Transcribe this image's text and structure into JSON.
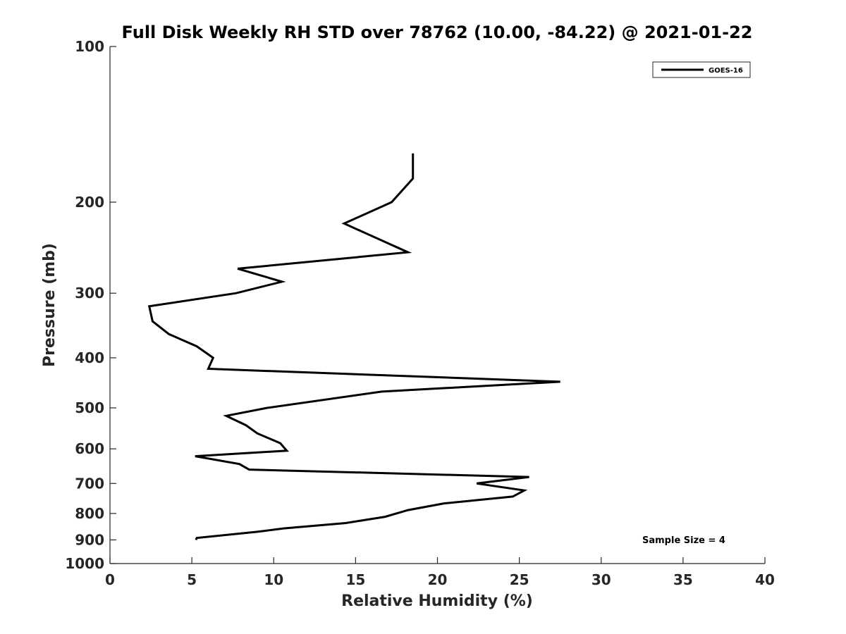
{
  "chart_data": {
    "type": "line",
    "title": "Full Disk Weekly RH STD over 78762 (10.00, -84.22) @ 2021-01-22",
    "xlabel": "Relative Humidity (%)",
    "ylabel": "Pressure (mb)",
    "xlim": [
      0,
      40
    ],
    "ylim": [
      100,
      1000
    ],
    "y_scale": "log",
    "y_reversed": true,
    "x_ticks": [
      "0",
      "5",
      "10",
      "15",
      "20",
      "25",
      "30",
      "35",
      "40"
    ],
    "y_ticks": [
      "100",
      "200",
      "300",
      "400",
      "500",
      "600",
      "700",
      "800",
      "900",
      "1000"
    ],
    "grid": false,
    "legend": {
      "position": "top-right",
      "entries": [
        "GOES-16"
      ]
    },
    "annotation": "Sample Size = 4",
    "series": [
      {
        "name": "GOES-16",
        "color": "#000000",
        "points": [
          [
            18.5,
            161
          ],
          [
            18.5,
            180
          ],
          [
            17.2,
            200
          ],
          [
            14.3,
            220
          ],
          [
            18.2,
            250
          ],
          [
            7.8,
            269
          ],
          [
            10.5,
            285
          ],
          [
            7.7,
            300
          ],
          [
            2.4,
            318
          ],
          [
            2.6,
            340
          ],
          [
            3.6,
            360
          ],
          [
            5.3,
            380
          ],
          [
            6.3,
            400
          ],
          [
            6.0,
            420
          ],
          [
            27.5,
            445
          ],
          [
            16.6,
            465
          ],
          [
            9.6,
            500
          ],
          [
            7.1,
            518
          ],
          [
            8.3,
            540
          ],
          [
            9.0,
            560
          ],
          [
            10.4,
            585
          ],
          [
            10.8,
            605
          ],
          [
            5.2,
            620
          ],
          [
            7.9,
            642
          ],
          [
            8.5,
            658
          ],
          [
            25.6,
            680
          ],
          [
            22.4,
            700
          ],
          [
            25.3,
            722
          ],
          [
            24.6,
            742
          ],
          [
            20.4,
            765
          ],
          [
            18.2,
            788
          ],
          [
            16.8,
            812
          ],
          [
            14.4,
            835
          ],
          [
            10.6,
            855
          ],
          [
            9.0,
            868
          ],
          [
            5.3,
            892
          ],
          [
            5.25,
            900
          ]
        ]
      }
    ]
  }
}
